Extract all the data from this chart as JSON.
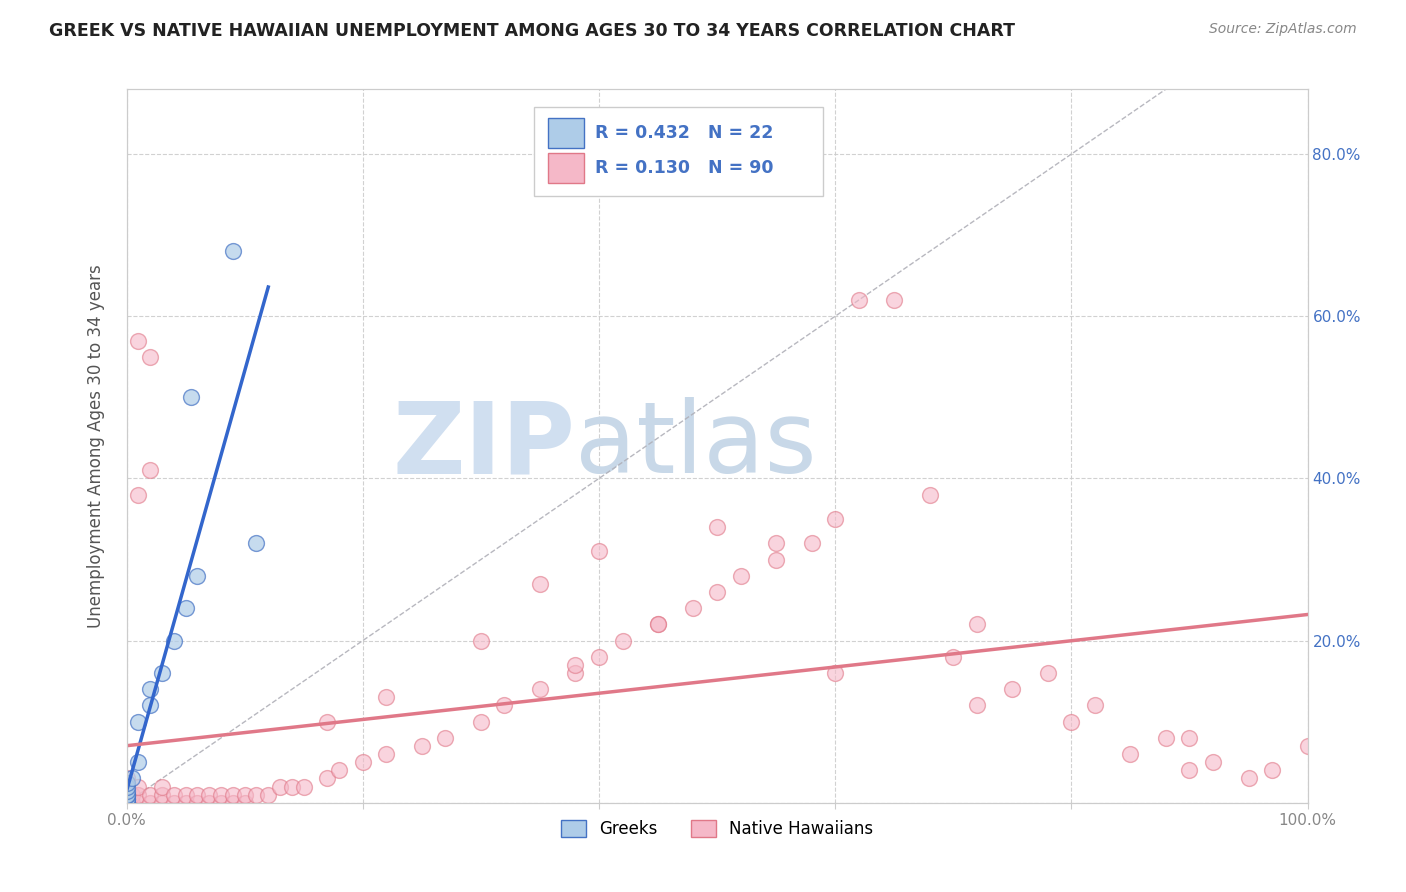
{
  "title": "GREEK VS NATIVE HAWAIIAN UNEMPLOYMENT AMONG AGES 30 TO 34 YEARS CORRELATION CHART",
  "source": "Source: ZipAtlas.com",
  "ylabel": "Unemployment Among Ages 30 to 34 years",
  "xlim": [
    0.0,
    1.0
  ],
  "ylim": [
    0.0,
    0.88
  ],
  "xticks": [
    0.0,
    0.2,
    0.4,
    0.6,
    0.8,
    1.0
  ],
  "xticklabels": [
    "0.0%",
    "",
    "",
    "",
    "",
    "100.0%"
  ],
  "yticks": [
    0.0,
    0.2,
    0.4,
    0.6,
    0.8
  ],
  "yticklabels_left": [
    "",
    "",
    "",
    "",
    ""
  ],
  "yticklabels_right": [
    "",
    "20.0%",
    "40.0%",
    "60.0%",
    "80.0%"
  ],
  "greek_R": 0.432,
  "greek_N": 22,
  "hawaiian_R": 0.13,
  "hawaiian_N": 90,
  "greek_fill_color": "#aecce8",
  "greek_edge_color": "#4472c4",
  "hawaiian_fill_color": "#f5b8c8",
  "hawaiian_edge_color": "#e07888",
  "greek_line_color": "#3366cc",
  "hawaiian_line_color": "#e07888",
  "legend_r_color": "#4472c4",
  "watermark_color": "#dce8f2",
  "grid_color": "#cccccc",
  "ref_line_color": "#b0b0b8",
  "title_color": "#222222",
  "source_color": "#888888",
  "axis_tick_color_left": "#888888",
  "axis_tick_color_right": "#4472c4",
  "greek_x": [
    0.0,
    0.0,
    0.0,
    0.0,
    0.0,
    0.0,
    0.0,
    0.0,
    0.0,
    0.0,
    0.005,
    0.01,
    0.01,
    0.02,
    0.02,
    0.03,
    0.04,
    0.05,
    0.055,
    0.06,
    0.09,
    0.11
  ],
  "greek_y": [
    0.0,
    0.0,
    0.0,
    0.005,
    0.005,
    0.01,
    0.01,
    0.015,
    0.02,
    0.025,
    0.03,
    0.05,
    0.1,
    0.12,
    0.14,
    0.16,
    0.2,
    0.24,
    0.5,
    0.28,
    0.68,
    0.32
  ],
  "haw_x": [
    0.0,
    0.0,
    0.0,
    0.0,
    0.0,
    0.0,
    0.0,
    0.0,
    0.0,
    0.0,
    0.005,
    0.005,
    0.01,
    0.01,
    0.01,
    0.01,
    0.02,
    0.02,
    0.02,
    0.03,
    0.03,
    0.03,
    0.04,
    0.04,
    0.05,
    0.05,
    0.06,
    0.06,
    0.07,
    0.07,
    0.08,
    0.08,
    0.09,
    0.09,
    0.1,
    0.1,
    0.11,
    0.12,
    0.13,
    0.14,
    0.15,
    0.17,
    0.18,
    0.2,
    0.22,
    0.25,
    0.27,
    0.3,
    0.32,
    0.35,
    0.38,
    0.4,
    0.42,
    0.45,
    0.48,
    0.5,
    0.52,
    0.55,
    0.58,
    0.6,
    0.62,
    0.65,
    0.68,
    0.7,
    0.72,
    0.75,
    0.78,
    0.8,
    0.82,
    0.85,
    0.88,
    0.9,
    0.92,
    0.95,
    0.97,
    1.0,
    0.02,
    0.01,
    0.35,
    0.4,
    0.5,
    0.55,
    0.17,
    0.22,
    0.3,
    0.38,
    0.45,
    0.6,
    0.72,
    0.9
  ],
  "haw_y": [
    0.0,
    0.0,
    0.005,
    0.005,
    0.01,
    0.01,
    0.015,
    0.02,
    0.025,
    0.03,
    0.0,
    0.01,
    0.0,
    0.01,
    0.02,
    0.57,
    0.0,
    0.01,
    0.55,
    0.0,
    0.01,
    0.02,
    0.0,
    0.01,
    0.0,
    0.01,
    0.0,
    0.01,
    0.0,
    0.01,
    0.0,
    0.01,
    0.0,
    0.01,
    0.0,
    0.01,
    0.01,
    0.01,
    0.02,
    0.02,
    0.02,
    0.03,
    0.04,
    0.05,
    0.06,
    0.07,
    0.08,
    0.1,
    0.12,
    0.14,
    0.16,
    0.18,
    0.2,
    0.22,
    0.24,
    0.26,
    0.28,
    0.3,
    0.32,
    0.35,
    0.62,
    0.62,
    0.38,
    0.18,
    0.22,
    0.14,
    0.16,
    0.1,
    0.12,
    0.06,
    0.08,
    0.04,
    0.05,
    0.03,
    0.04,
    0.07,
    0.41,
    0.38,
    0.27,
    0.31,
    0.34,
    0.32,
    0.1,
    0.13,
    0.2,
    0.17,
    0.22,
    0.16,
    0.12,
    0.08
  ]
}
